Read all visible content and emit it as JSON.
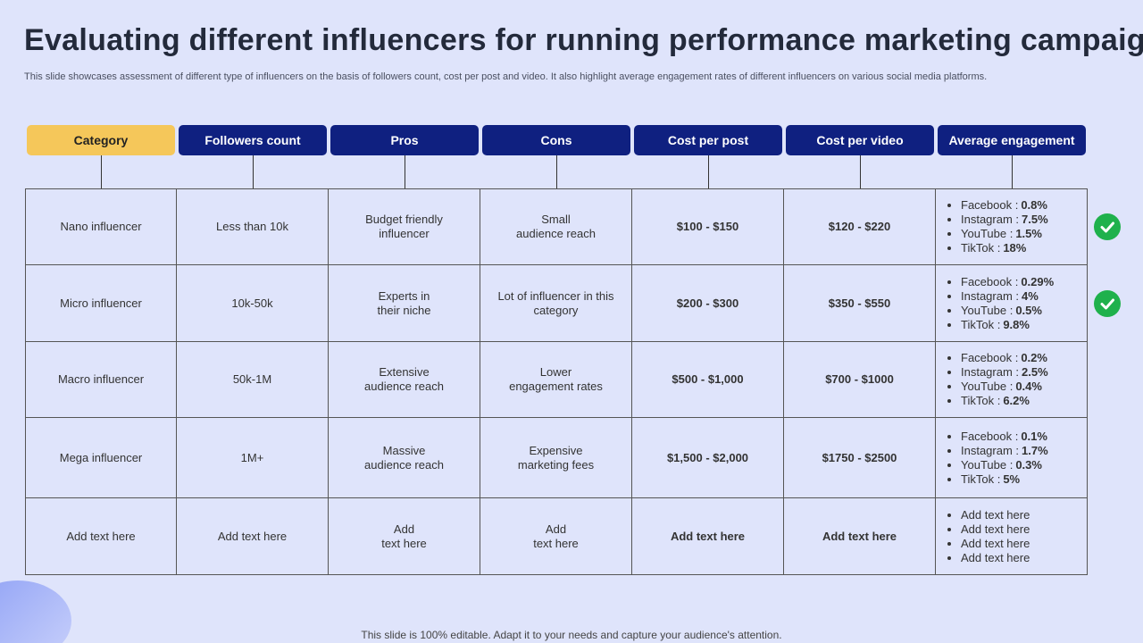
{
  "header": {
    "title": "Evaluating different influencers for running performance marketing campaign",
    "subtitle": "This slide showcases assessment of different type  of influencers on the basis of followers count, cost per post and video. It also highlight average engagement rates of different influencers on various social media platforms."
  },
  "table": {
    "headers": [
      "Category",
      "Followers count",
      "Pros",
      "Cons",
      "Cost per post",
      "Cost  per video",
      "Average engagement"
    ],
    "rows": [
      {
        "cells": [
          "Nano influencer",
          "Less than 10k",
          "Budget friendly\ninfluencer",
          "Small\naudience reach",
          "$100  - $150",
          "$120  - $220"
        ],
        "engagement": [
          {
            "label": "Facebook :",
            "value": "0.8%"
          },
          {
            "label": "Instagram  :",
            "value": "7.5%"
          },
          {
            "label": "YouTube :",
            "value": "1.5%"
          },
          {
            "label": "TikTok  :",
            "value": "18%"
          }
        ],
        "checked": true
      },
      {
        "cells": [
          "Micro influencer",
          "10k-50k",
          "Experts in\ntheir niche",
          "Lot of influencer  in this\ncategory",
          "$200  - $300",
          "$350  - $550"
        ],
        "engagement": [
          {
            "label": "Facebook :",
            "value": "0.29%"
          },
          {
            "label": "Instagram  :",
            "value": "4%"
          },
          {
            "label": "YouTube  :",
            "value": "0.5%"
          },
          {
            "label": "TikTok  :",
            "value": "9.8%"
          }
        ],
        "checked": true
      },
      {
        "cells": [
          "Macro influencer",
          "50k-1M",
          "Extensive\naudience reach",
          "Lower\nengagement  rates",
          "$500  - $1,000",
          "$700  - $1000"
        ],
        "engagement": [
          {
            "label": "Facebook :",
            "value": "0.2%"
          },
          {
            "label": "Instagram  :",
            "value": "2.5%"
          },
          {
            "label": "YouTube  :",
            "value": "0.4%"
          },
          {
            "label": "TikTok  :",
            "value": "6.2%"
          }
        ],
        "checked": false
      },
      {
        "cells": [
          "Mega influencer",
          "1M+",
          "Massive\naudience reach",
          "Expensive\nmarketing fees",
          "$1,500  - $2,000",
          "$1750  - $2500"
        ],
        "engagement": [
          {
            "label": "Facebook :",
            "value": "0.1%"
          },
          {
            "label": "Instagram  :",
            "value": "1.7%"
          },
          {
            "label": "YouTube  :",
            "value": "0.3%"
          },
          {
            "label": "TikTok  :",
            "value": "5%"
          }
        ],
        "checked": false
      },
      {
        "cells": [
          "Add text here",
          "Add text here",
          "Add\ntext here",
          "Add\ntext here",
          "Add text here",
          "Add text here"
        ],
        "engagement": [
          "Add text here",
          "Add text here",
          "Add text here",
          "Add text here"
        ],
        "checked": false
      }
    ]
  },
  "footer": "This slide is 100% editable. Adapt it to your needs and capture your audience's attention."
}
